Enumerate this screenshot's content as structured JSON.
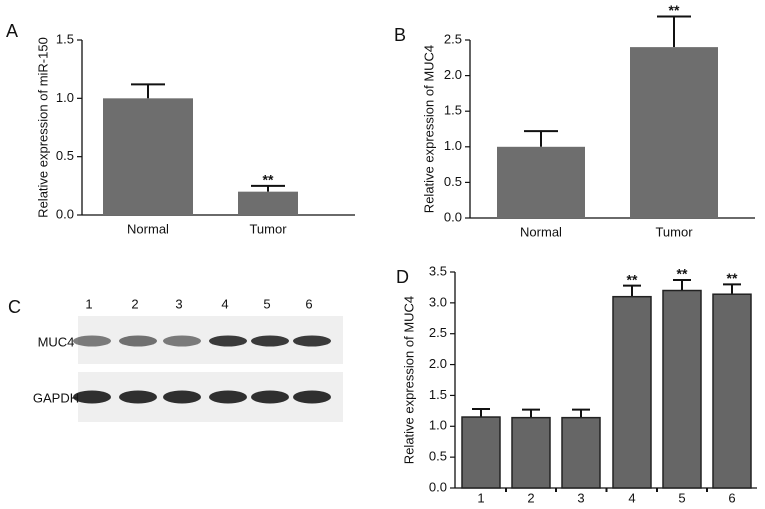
{
  "chart_data": [
    {
      "type": "bar",
      "panel_label": "A",
      "y_label": "Relative expression of miR-150",
      "categories": [
        "Normal",
        "Tumor"
      ],
      "values": [
        1.0,
        0.2
      ],
      "errors": [
        0.12,
        0.05
      ],
      "annotations": [
        null,
        "**"
      ],
      "color": "#6e6e6e",
      "ylim": [
        0,
        1.5
      ],
      "yticks": [
        {
          "value": 0,
          "label": "0.0"
        },
        {
          "value": 0.5,
          "label": "0.5"
        },
        {
          "value": 1,
          "label": "1.0"
        },
        {
          "value": 1.5,
          "label": "1.5"
        }
      ]
    },
    {
      "type": "bar",
      "panel_label": "B",
      "y_label": "Relative expression of MUC4",
      "categories": [
        "Normal",
        "Tumor"
      ],
      "values": [
        1.0,
        2.4
      ],
      "errors": [
        0.22,
        0.43
      ],
      "annotations": [
        null,
        "**"
      ],
      "color": "#6e6e6e",
      "ylim": [
        0,
        2.5
      ],
      "yticks": [
        {
          "value": 0,
          "label": "0.0"
        },
        {
          "value": 0.5,
          "label": "0.5"
        },
        {
          "value": 1,
          "label": "1.0"
        },
        {
          "value": 1.5,
          "label": "1.5"
        },
        {
          "value": 2,
          "label": "2.0"
        },
        {
          "value": 2.5,
          "label": "2.5"
        }
      ]
    },
    {
      "type": "bar",
      "panel_label": "D",
      "y_label": "Relative expression of MUC4",
      "categories": [
        "1",
        "2",
        "3",
        "4",
        "5",
        "6"
      ],
      "values": [
        1.15,
        1.14,
        1.14,
        3.1,
        3.2,
        3.14
      ],
      "errors": [
        0.13,
        0.13,
        0.13,
        0.18,
        0.17,
        0.16
      ],
      "annotations": [
        null,
        null,
        null,
        "**",
        "**",
        "**"
      ],
      "color": "#666666",
      "ylim": [
        0,
        3.5
      ],
      "yticks": [
        {
          "value": 0,
          "label": "0.0"
        },
        {
          "value": 0.5,
          "label": "0.5"
        },
        {
          "value": 1,
          "label": "1.0"
        },
        {
          "value": 1.5,
          "label": "1.5"
        },
        {
          "value": 2,
          "label": "2.0"
        },
        {
          "value": 2.5,
          "label": "2.5"
        },
        {
          "value": 3,
          "label": "3.0"
        },
        {
          "value": 3.5,
          "label": "3.5"
        }
      ]
    }
  ],
  "blot": {
    "panel_label": "C",
    "lanes": [
      "1",
      "2",
      "3",
      "4",
      "5",
      "6"
    ],
    "rows": [
      "MUC4",
      "GAPDH"
    ]
  }
}
